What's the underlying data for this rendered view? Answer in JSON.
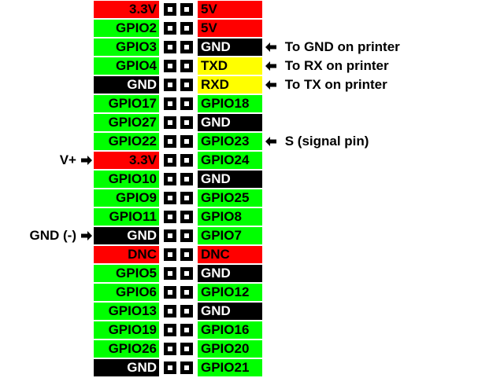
{
  "colors": {
    "power": "#ff0000",
    "gpio": "#00ff00",
    "ground": "#000000",
    "uart": "#ffff00",
    "dnc": "#ff0000",
    "text_dark": "#000000",
    "text_light": "#ffffff"
  },
  "rows": [
    {
      "left": {
        "label": "3.3V",
        "type": "power"
      },
      "right": {
        "label": "5V",
        "type": "power"
      }
    },
    {
      "left": {
        "label": "GPIO2",
        "type": "gpio"
      },
      "right": {
        "label": "5V",
        "type": "power"
      }
    },
    {
      "left": {
        "label": "GPIO3",
        "type": "gpio"
      },
      "right": {
        "label": "GND",
        "type": "ground"
      },
      "note_right": "To GND on printer"
    },
    {
      "left": {
        "label": "GPIO4",
        "type": "gpio"
      },
      "right": {
        "label": "TXD",
        "type": "uart"
      },
      "note_right": "To RX on printer"
    },
    {
      "left": {
        "label": "GND",
        "type": "ground"
      },
      "right": {
        "label": "RXD",
        "type": "uart"
      },
      "note_right": "To TX on printer"
    },
    {
      "left": {
        "label": "GPIO17",
        "type": "gpio"
      },
      "right": {
        "label": "GPIO18",
        "type": "gpio"
      }
    },
    {
      "left": {
        "label": "GPIO27",
        "type": "gpio"
      },
      "right": {
        "label": "GND",
        "type": "ground"
      }
    },
    {
      "left": {
        "label": "GPIO22",
        "type": "gpio"
      },
      "right": {
        "label": "GPIO23",
        "type": "gpio"
      },
      "note_right": "S (signal pin)"
    },
    {
      "left": {
        "label": "3.3V",
        "type": "power"
      },
      "right": {
        "label": "GPIO24",
        "type": "gpio"
      },
      "note_left": "V+"
    },
    {
      "left": {
        "label": "GPIO10",
        "type": "gpio"
      },
      "right": {
        "label": "GND",
        "type": "ground"
      }
    },
    {
      "left": {
        "label": "GPIO9",
        "type": "gpio"
      },
      "right": {
        "label": "GPIO25",
        "type": "gpio"
      }
    },
    {
      "left": {
        "label": "GPIO11",
        "type": "gpio"
      },
      "right": {
        "label": "GPIO8",
        "type": "gpio"
      }
    },
    {
      "left": {
        "label": "GND",
        "type": "ground"
      },
      "right": {
        "label": "GPIO7",
        "type": "gpio"
      },
      "note_left": "GND (-)"
    },
    {
      "left": {
        "label": "DNC",
        "type": "dnc"
      },
      "right": {
        "label": "DNC",
        "type": "dnc"
      }
    },
    {
      "left": {
        "label": "GPIO5",
        "type": "gpio"
      },
      "right": {
        "label": "GND",
        "type": "ground"
      }
    },
    {
      "left": {
        "label": "GPIO6",
        "type": "gpio"
      },
      "right": {
        "label": "GPIO12",
        "type": "gpio"
      }
    },
    {
      "left": {
        "label": "GPIO13",
        "type": "gpio"
      },
      "right": {
        "label": "GND",
        "type": "ground"
      }
    },
    {
      "left": {
        "label": "GPIO19",
        "type": "gpio"
      },
      "right": {
        "label": "GPIO16",
        "type": "gpio"
      }
    },
    {
      "left": {
        "label": "GPIO26",
        "type": "gpio"
      },
      "right": {
        "label": "GPIO20",
        "type": "gpio"
      }
    },
    {
      "left": {
        "label": "GND",
        "type": "ground"
      },
      "right": {
        "label": "GPIO21",
        "type": "gpio"
      }
    }
  ],
  "icons": {
    "arrow_left": "left-arrow-icon",
    "arrow_right": "right-arrow-icon"
  }
}
